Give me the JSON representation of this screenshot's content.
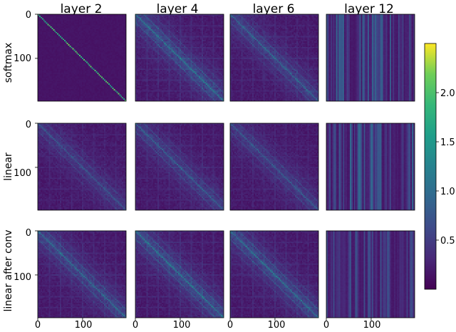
{
  "chart_data": {
    "type": "heatmap",
    "description_cols": [
      "layer 2",
      "layer 4",
      "layer 6",
      "layer 12"
    ],
    "columns": [
      "layer 2",
      "layer 4",
      "layer 6",
      "layer 12"
    ],
    "rows": [
      "softmax",
      "linear",
      "linear after conv"
    ],
    "x_ticks": [
      "0",
      "100"
    ],
    "y_ticks": [
      "0",
      "100"
    ],
    "matrix_size": 197,
    "colormap": "viridis",
    "colorbar": {
      "min": 0.0,
      "max": 2.5,
      "ticks": [
        "0.5",
        "1.0",
        "1.5",
        "2.0"
      ],
      "tick_values": [
        0.5,
        1.0,
        1.5,
        2.0
      ]
    },
    "panels": [
      {
        "row": "softmax",
        "layer": "layer 2",
        "pattern": "diagonal",
        "intensity": 2.2
      },
      {
        "row": "softmax",
        "layer": "layer 4",
        "pattern": "banded-diagonal",
        "intensity": 1.5
      },
      {
        "row": "softmax",
        "layer": "layer 6",
        "pattern": "banded-diagonal",
        "intensity": 1.2
      },
      {
        "row": "softmax",
        "layer": "layer 12",
        "pattern": "vertical-stripes",
        "intensity": 1.2
      },
      {
        "row": "linear",
        "layer": "layer 2",
        "pattern": "banded-diagonal",
        "intensity": 0.9
      },
      {
        "row": "linear",
        "layer": "layer 4",
        "pattern": "banded-diagonal",
        "intensity": 1.1
      },
      {
        "row": "linear",
        "layer": "layer 6",
        "pattern": "banded-diagonal",
        "intensity": 1.0
      },
      {
        "row": "linear",
        "layer": "layer 12",
        "pattern": "vertical-stripes",
        "intensity": 1.3
      },
      {
        "row": "linear after conv",
        "layer": "layer 2",
        "pattern": "banded-diagonal",
        "intensity": 1.3
      },
      {
        "row": "linear after conv",
        "layer": "layer 4",
        "pattern": "banded-diagonal",
        "intensity": 1.5
      },
      {
        "row": "linear after conv",
        "layer": "layer 6",
        "pattern": "banded-diagonal",
        "intensity": 1.4
      },
      {
        "row": "linear after conv",
        "layer": "layer 12",
        "pattern": "vertical-stripes",
        "intensity": 1.0
      }
    ]
  }
}
